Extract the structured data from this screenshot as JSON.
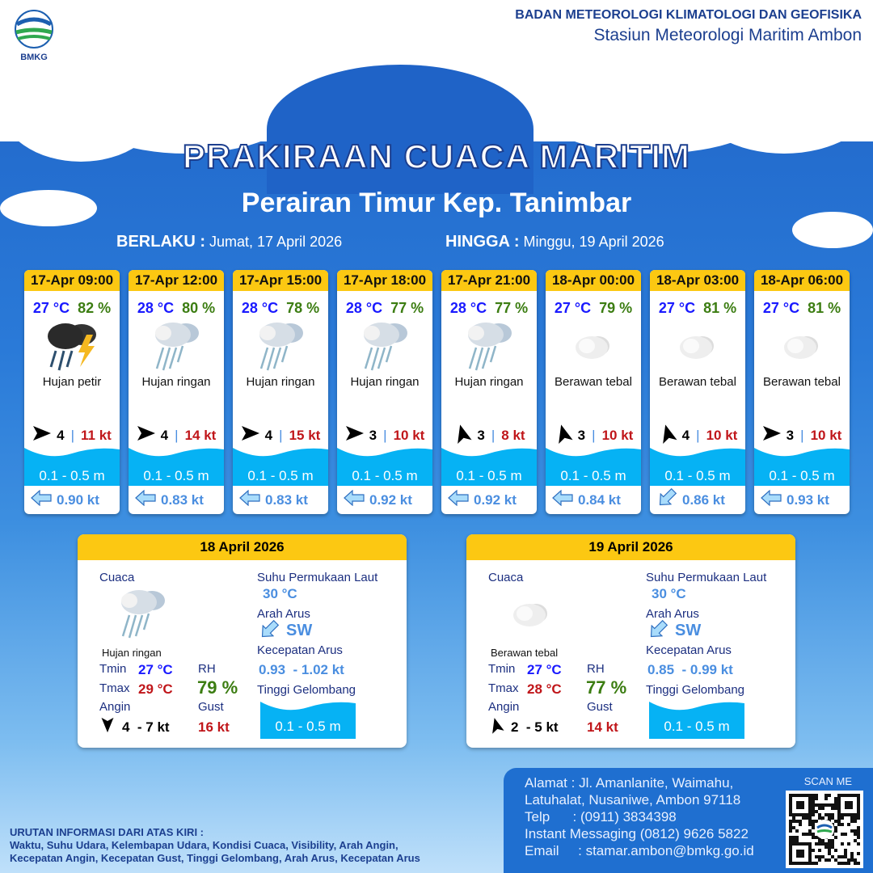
{
  "header": {
    "logo_text": "BMKG",
    "agency": "BADAN METEOROLOGI KLIMATOLOGI DAN GEOFISIKA",
    "station": "Stasiun Meteorologi Maritim Ambon"
  },
  "title": "PRAKIRAAN CUACA MARITIM",
  "area": "Perairan Timur Kep. Tanimbar",
  "valid_from_label": "BERLAKU :",
  "valid_from": "Jumat, 17 April 2026",
  "valid_to_label": "HINGGA :",
  "valid_to": "Minggu, 19 April 2026",
  "colors": {
    "header_yellow": "#fcc812",
    "wave": "#06b2f4",
    "temp": "#1a1aff",
    "rh": "#3c7d12",
    "gust": "#c0161a"
  },
  "forecasts": [
    {
      "time": "17-Apr 09:00",
      "temp": "27 °C",
      "rh": "82 %",
      "icon": "thunderstorm-icon",
      "weather": "Hujan petir",
      "wind_dir_deg": 90,
      "wind": "4",
      "gust": "11 kt",
      "wave": "0.1 - 0.5 m",
      "current_icon": "arrow-left-icon",
      "current": "0.90 kt"
    },
    {
      "time": "17-Apr 12:00",
      "temp": "28 °C",
      "rh": "80 %",
      "icon": "light-rain-icon",
      "weather": "Hujan ringan",
      "wind_dir_deg": 90,
      "wind": "4",
      "gust": "14 kt",
      "wave": "0.1 - 0.5 m",
      "current_icon": "arrow-left-icon",
      "current": "0.83 kt"
    },
    {
      "time": "17-Apr 15:00",
      "temp": "28 °C",
      "rh": "78 %",
      "icon": "light-rain-icon",
      "weather": "Hujan ringan",
      "wind_dir_deg": 90,
      "wind": "4",
      "gust": "15 kt",
      "wave": "0.1 - 0.5 m",
      "current_icon": "arrow-left-icon",
      "current": "0.83 kt"
    },
    {
      "time": "17-Apr 18:00",
      "temp": "28 °C",
      "rh": "77 %",
      "icon": "light-rain-icon",
      "weather": "Hujan ringan",
      "wind_dir_deg": 90,
      "wind": "3",
      "gust": "10 kt",
      "wave": "0.1 - 0.5 m",
      "current_icon": "arrow-left-icon",
      "current": "0.92 kt"
    },
    {
      "time": "17-Apr 21:00",
      "temp": "28 °C",
      "rh": "77 %",
      "icon": "light-rain-icon",
      "weather": "Hujan ringan",
      "wind_dir_deg": -15,
      "wind": "3",
      "gust": "8 kt",
      "wave": "0.1 - 0.5 m",
      "current_icon": "arrow-left-icon",
      "current": "0.92 kt"
    },
    {
      "time": "18-Apr 00:00",
      "temp": "27 °C",
      "rh": "79 %",
      "icon": "overcast-icon",
      "weather": "Berawan tebal",
      "wind_dir_deg": -15,
      "wind": "3",
      "gust": "10 kt",
      "wave": "0.1 - 0.5 m",
      "current_icon": "arrow-left-icon",
      "current": "0.84 kt"
    },
    {
      "time": "18-Apr 03:00",
      "temp": "27 °C",
      "rh": "81 %",
      "icon": "overcast-icon",
      "weather": "Berawan tebal",
      "wind_dir_deg": -15,
      "wind": "4",
      "gust": "10 kt",
      "wave": "0.1 - 0.5 m",
      "current_icon": "arrow-southwest-icon",
      "current": "0.86 kt"
    },
    {
      "time": "18-Apr 06:00",
      "temp": "27 °C",
      "rh": "81 %",
      "icon": "overcast-icon",
      "weather": "Berawan tebal",
      "wind_dir_deg": 90,
      "wind": "3",
      "gust": "10 kt",
      "wave": "0.1 - 0.5 m",
      "current_icon": "arrow-left-icon",
      "current": "0.93 kt"
    }
  ],
  "labels": {
    "weather": "Cuaca",
    "sst": "Suhu Permukaan Laut",
    "cur_dir": "Arah Arus",
    "cur_speed": "Kecepatan Arus",
    "wave": "Tinggi Gelombang",
    "tmin": "Tmin",
    "tmax": "Tmax",
    "rh": "RH",
    "wind": "Angin",
    "gust": "Gust"
  },
  "daily": [
    {
      "date": "18 April 2026",
      "icon": "light-rain-icon",
      "weather": "Hujan ringan",
      "tmin": "27 °C",
      "tmax": "29 °C",
      "rh": "79 %",
      "wind": "4  - 7 kt",
      "wind_dir_deg": 180,
      "gust": "16 kt",
      "sst": "30 °C",
      "cur_dir": "SW",
      "cur_speed": "0.93  - 1.02 kt",
      "wave": "0.1 - 0.5 m"
    },
    {
      "date": "19 April 2026",
      "icon": "overcast-icon",
      "weather": "Berawan tebal",
      "tmin": "27 °C",
      "tmax": "28 °C",
      "rh": "77 %",
      "wind": "2  - 5 kt",
      "wind_dir_deg": -15,
      "gust": "14 kt",
      "sst": "30 °C",
      "cur_dir": "SW",
      "cur_speed": "0.85  - 0.99 kt",
      "wave": "0.1 - 0.5 m"
    }
  ],
  "footer": {
    "address1": "Alamat : Jl. Amanlanite, Waimahu,",
    "address2": "Latuhalat, Nusaniwe, Ambon 97118",
    "phone": "Telp      : (0911) 3834398",
    "im": "Instant Messaging (0812) 9626 5822",
    "email": "Email     : stamar.ambon@bmkg.go.id",
    "scan": "SCAN ME"
  },
  "note": {
    "title": "URUTAN INFORMASI DARI ATAS KIRI :",
    "line1": "Waktu, Suhu Udara, Kelembapan Udara, Kondisi Cuaca, Visibility, Arah Angin,",
    "line2": "Kecepatan Angin, Kecepatan Gust, Tinggi Gelombang, Arah Arus, Kecepatan Arus"
  }
}
